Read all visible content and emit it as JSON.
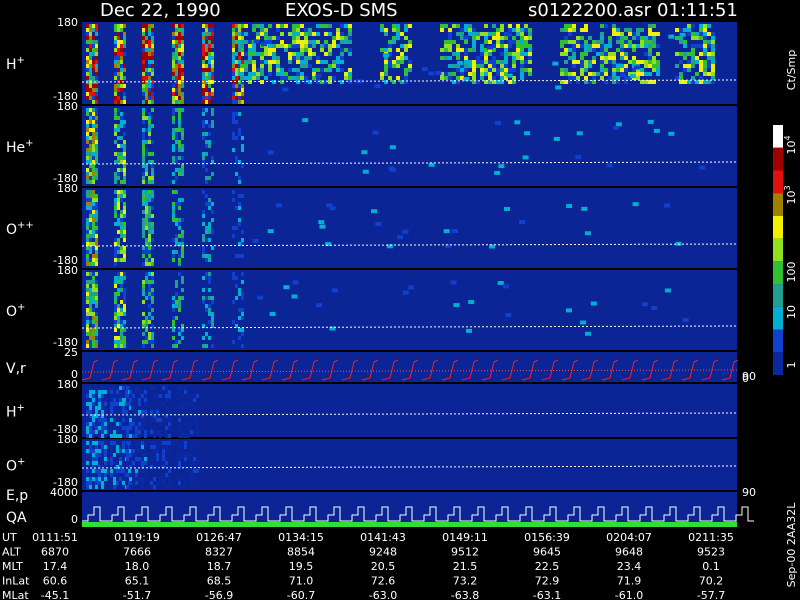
{
  "header": {
    "date": "Dec 22, 1990",
    "instrument": "EXOS-D SMS",
    "file": "s0122200.asr",
    "time": "01:11:51"
  },
  "panels": [
    {
      "label": "H",
      "sup": "+",
      "ticks": [
        "180",
        "-180"
      ]
    },
    {
      "label": "He",
      "sup": "+",
      "ticks": [
        "180",
        "-180"
      ]
    },
    {
      "label": "O",
      "sup": "++",
      "ticks": [
        "180",
        "-180"
      ]
    },
    {
      "label": "O",
      "sup": "+",
      "ticks": [
        "180",
        "-180"
      ]
    },
    {
      "label": "V,r",
      "ticks": [
        "25",
        "0"
      ],
      "right_ticks": [
        "90",
        "0"
      ]
    },
    {
      "label": "H",
      "sup": "+",
      "ticks": [
        "180",
        "-180"
      ]
    },
    {
      "label": "O",
      "sup": "+",
      "ticks": [
        "180",
        "-180"
      ]
    },
    {
      "label": "E,p",
      "label2": "QA",
      "ticks": [
        "4000",
        "0"
      ],
      "right_ticks": [
        "90"
      ]
    }
  ],
  "colorbar": {
    "unit": "Ct/Smp",
    "labels": [
      {
        "text": "10",
        "sup": "4"
      },
      {
        "text": "10",
        "sup": "3"
      },
      {
        "text": "100"
      },
      {
        "text": "10"
      },
      {
        "text": "1"
      }
    ]
  },
  "ephemeris": {
    "rows": [
      {
        "label": "UT",
        "values": [
          "0111:51",
          "0119:19",
          "0126:47",
          "0134:15",
          "0141:43",
          "0149:11",
          "0156:39",
          "0204:07",
          "0211:35"
        ]
      },
      {
        "label": "ALT",
        "values": [
          "6870",
          "7666",
          "8327",
          "8854",
          "9248",
          "9512",
          "9645",
          "9648",
          "9523"
        ]
      },
      {
        "label": "MLT",
        "values": [
          "17.4",
          "18.0",
          "18.7",
          "19.5",
          "20.5",
          "21.5",
          "22.5",
          "23.4",
          "0.1"
        ]
      },
      {
        "label": "InLat",
        "values": [
          "60.6",
          "65.1",
          "68.5",
          "71.0",
          "72.6",
          "73.2",
          "72.9",
          "71.9",
          "70.2"
        ]
      },
      {
        "label": "MLat",
        "values": [
          "-45.1",
          "-51.7",
          "-56.9",
          "-60.7",
          "-63.0",
          "-63.8",
          "-63.1",
          "-61.0",
          "-57.7"
        ]
      }
    ]
  },
  "footer": "Sep-00  2AA32L"
}
